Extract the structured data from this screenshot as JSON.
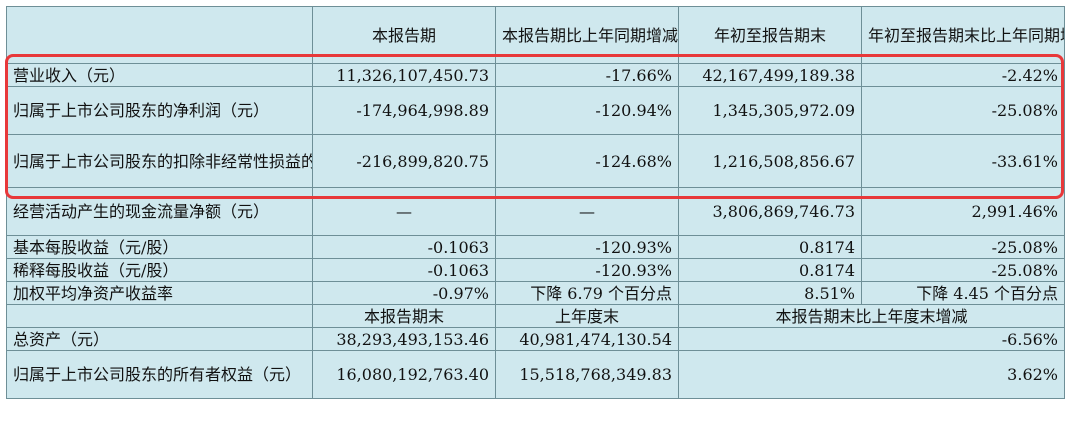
{
  "headers": {
    "col1": "本报告期",
    "col2": "本报告期比上年同期增减",
    "col3": "年初至报告期末",
    "col4": "年初至报告期末比上年同期增减"
  },
  "rows": [
    {
      "label": "营业收入（元）",
      "v1": "11,326,107,450.73",
      "v2": "-17.66%",
      "v3": "42,167,499,189.38",
      "v4": "-2.42%"
    },
    {
      "label": "归属于上市公司股东的净利润（元）",
      "v1": "-174,964,998.89",
      "v2": "-120.94%",
      "v3": "1,345,305,972.09",
      "v4": "-25.08%"
    },
    {
      "label": "归属于上市公司股东的扣除非经常性损益的净利润（元）",
      "v1": "-216,899,820.75",
      "v2": "-124.68%",
      "v3": "1,216,508,856.67",
      "v4": "-33.61%"
    },
    {
      "label": "经营活动产生的现金流量净额（元）",
      "v1": "—",
      "v2": "—",
      "v3": "3,806,869,746.73",
      "v4": "2,991.46%"
    },
    {
      "label": "基本每股收益（元/股）",
      "v1": "-0.1063",
      "v2": "-120.93%",
      "v3": "0.8174",
      "v4": "-25.08%"
    },
    {
      "label": "稀释每股收益（元/股）",
      "v1": "-0.1063",
      "v2": "-120.93%",
      "v3": "0.8174",
      "v4": "-25.08%"
    },
    {
      "label": "加权平均净资产收益率",
      "v1": "-0.97%",
      "v2": "下降 6.79 个百分点",
      "v3": "8.51%",
      "v4": "下降 4.45 个百分点"
    }
  ],
  "headers2": {
    "col1": "本报告期末",
    "col2": "上年度末",
    "col3": "本报告期末比上年度末增减"
  },
  "rows2": [
    {
      "label": "总资产（元）",
      "v1": "38,293,493,153.46",
      "v2": "40,981,474,130.54",
      "v3": "-6.56%"
    },
    {
      "label": "归属于上市公司股东的所有者权益（元）",
      "v1": "16,080,192,763.40",
      "v2": "15,518,768,349.83",
      "v3": "3.62%"
    }
  ],
  "colors": {
    "cell_bg": "#cfe8ee",
    "grid": "#6e8f97",
    "highlight": "#e8383a"
  }
}
